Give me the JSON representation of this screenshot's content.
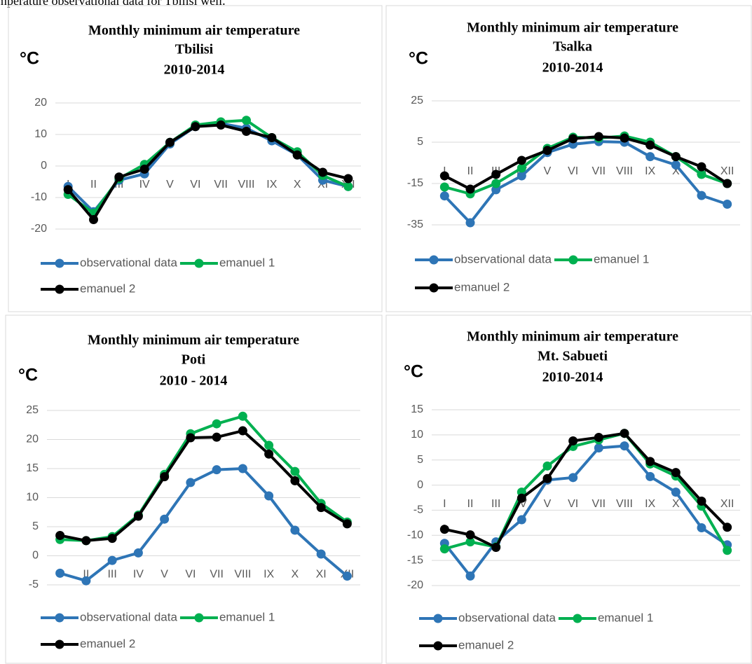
{
  "header_text": "mperature observational data for Tbilisi well.",
  "chart_data": [
    {
      "type": "line",
      "title": "Monthly minimum air temperature",
      "subtitle": "Tbilisi",
      "period": "2010-2014",
      "ylabel": "°C",
      "categories": [
        "I",
        "II",
        "III",
        "IV",
        "V",
        "VI",
        "VII",
        "VIII",
        "IX",
        "X",
        "XI",
        "XII"
      ],
      "series": [
        {
          "name": "observational data",
          "color": "#2e75b6",
          "values": [
            -6.5,
            -14.5,
            -4.5,
            -2.5,
            7,
            12.5,
            13.5,
            12,
            8,
            3.5,
            -4.5,
            -6.5
          ]
        },
        {
          "name": "emanuel 1",
          "color": "#00b050",
          "values": [
            -9,
            -15,
            -4,
            0.5,
            7.5,
            13,
            14,
            14.5,
            9,
            4.5,
            -3,
            -6.5
          ]
        },
        {
          "name": "emanuel 2",
          "color": "#000000",
          "values": [
            -7.5,
            -17,
            -3.5,
            -1,
            7.5,
            12.5,
            13,
            11,
            9,
            3.5,
            -2,
            -4
          ]
        }
      ],
      "ylim": [
        -20,
        20
      ],
      "yticks": [
        -20,
        -10,
        0,
        10,
        20
      ],
      "grid": true
    },
    {
      "type": "line",
      "title": "Monthly minimum air temperature",
      "subtitle": "Tsalka",
      "period": "2010-2014",
      "ylabel": "°C",
      "categories": [
        "I",
        "II",
        "III",
        "IV",
        "V",
        "VI",
        "VII",
        "VIII",
        "IX",
        "X",
        "XI",
        "XII"
      ],
      "series": [
        {
          "name": "observational data",
          "color": "#2e75b6",
          "values": [
            -21,
            -34,
            -18,
            -11.3,
            0,
            4,
            5.3,
            5,
            -2,
            -6,
            -20.8,
            -25
          ]
        },
        {
          "name": "emanuel 1",
          "color": "#00b050",
          "values": [
            -16.7,
            -20,
            -15,
            -7.5,
            2,
            7.4,
            7,
            8,
            5,
            -2,
            -10.6,
            -15
          ]
        },
        {
          "name": "emanuel 2",
          "color": "#000000",
          "values": [
            -11.3,
            -17.7,
            -10.6,
            -3.8,
            1,
            6.7,
            7.7,
            7,
            3.6,
            -2,
            -6.9,
            -15
          ]
        }
      ],
      "ylim": [
        -35,
        25
      ],
      "yticks": [
        -35,
        -15,
        5,
        25
      ],
      "grid": true
    },
    {
      "type": "line",
      "title": "Monthly minimum air temperature",
      "subtitle": "Poti",
      "period": "2010 - 2014",
      "ylabel": "°C",
      "categories": [
        "I",
        "II",
        "III",
        "IV",
        "V",
        "VI",
        "VII",
        "VIII",
        "IX",
        "X",
        "XI",
        "XII"
      ],
      "series": [
        {
          "name": "observational data",
          "color": "#2e75b6",
          "values": [
            -3,
            -4.3,
            -0.8,
            0.5,
            6.3,
            12.6,
            14.8,
            15,
            10.3,
            4.4,
            0.3,
            -3.5
          ]
        },
        {
          "name": "emanuel 1",
          "color": "#00b050",
          "values": [
            2.8,
            2.6,
            3.3,
            7,
            14,
            21,
            22.7,
            24,
            19,
            14.5,
            9,
            5.8
          ]
        },
        {
          "name": "emanuel 2",
          "color": "#000000",
          "values": [
            3.5,
            2.6,
            3,
            6.8,
            13.6,
            20.3,
            20.4,
            21.5,
            17.5,
            12.9,
            8.3,
            5.5
          ]
        }
      ],
      "ylim": [
        -5,
        25
      ],
      "yticks": [
        -5,
        0,
        5,
        10,
        15,
        20,
        25
      ],
      "grid": true
    },
    {
      "type": "line",
      "title": "Monthly minimum air temperature",
      "subtitle": "Mt. Sabueti",
      "period": "2010-2014",
      "ylabel": "°C",
      "categories": [
        "I",
        "II",
        "III",
        "IV",
        "V",
        "VI",
        "VII",
        "VIII",
        "IX",
        "X",
        "XI",
        "XII"
      ],
      "series": [
        {
          "name": "observational data",
          "color": "#2e75b6",
          "values": [
            -11.6,
            -18.1,
            -11.3,
            -6.9,
            1,
            1.5,
            7.4,
            7.8,
            1.7,
            -1.4,
            -8.5,
            -11.9
          ]
        },
        {
          "name": "emanuel 1",
          "color": "#00b050",
          "values": [
            -12.7,
            -11.3,
            -12.3,
            -1.4,
            3.8,
            7.7,
            9,
            10.3,
            4.2,
            1.8,
            -4.2,
            -13
          ]
        },
        {
          "name": "emanuel 2",
          "color": "#000000",
          "values": [
            -8.8,
            -9.9,
            -12.4,
            -2.6,
            1.3,
            8.8,
            9.5,
            10.3,
            4.7,
            2.5,
            -3.2,
            -8.4
          ]
        }
      ],
      "ylim": [
        -20,
        15
      ],
      "yticks": [
        -20,
        -15,
        -10,
        -5,
        0,
        5,
        10,
        15
      ],
      "grid": true
    }
  ]
}
